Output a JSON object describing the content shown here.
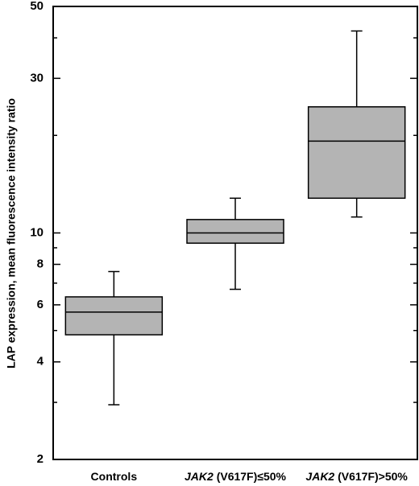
{
  "chart_data": {
    "type": "box",
    "ylabel": "LAP expression, mean fluorescence intensity ratio",
    "yscale": "log",
    "ylim": [
      2,
      50
    ],
    "y_major_ticks": [
      {
        "value": 2,
        "label": "2"
      },
      {
        "value": 4,
        "label": "4"
      },
      {
        "value": 6,
        "label": "6"
      },
      {
        "value": 8,
        "label": "8"
      },
      {
        "value": 10,
        "label": "10"
      },
      {
        "value": 30,
        "label": "30"
      },
      {
        "value": 50,
        "label": "50"
      }
    ],
    "y_minor_ticks": [
      3,
      5,
      7,
      9,
      20,
      40
    ],
    "grid": false,
    "box_color": "#b4b4b4",
    "categories": [
      {
        "label_italic": "",
        "label_rest": "Controls",
        "whisker_low": 2.95,
        "q1": 4.85,
        "median": 5.7,
        "q3": 6.35,
        "whisker_high": 7.6
      },
      {
        "label_italic": "JAK2",
        "label_rest": " (V617F)≤50%",
        "whisker_low": 6.7,
        "q1": 9.3,
        "median": 10.0,
        "q3": 11.0,
        "whisker_high": 12.8
      },
      {
        "label_italic": "JAK2",
        "label_rest": " (V617F)>50%",
        "whisker_low": 11.2,
        "q1": 12.8,
        "median": 19.2,
        "q3": 24.5,
        "whisker_high": 42.0
      }
    ]
  }
}
